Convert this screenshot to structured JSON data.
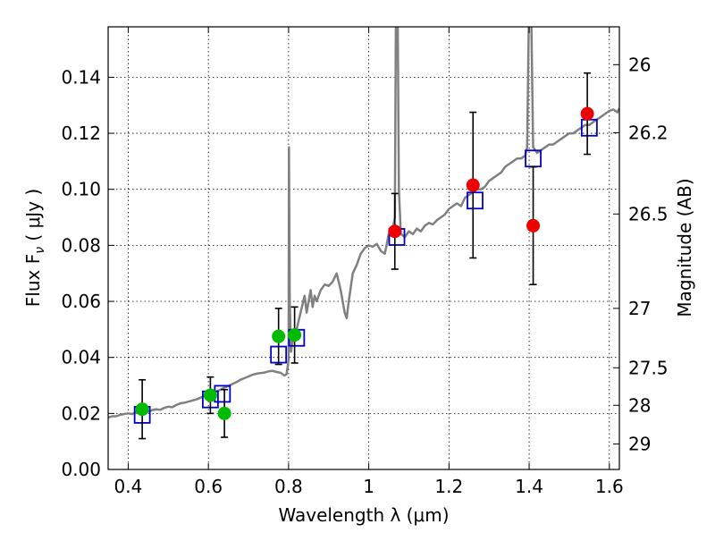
{
  "chart_data": {
    "type": "scatter",
    "xlabel": "Wavelength  λ (μm)",
    "ylabel": "Flux  F",
    "ylabel_sub": "ν",
    "ylabel_unit": "  ( μJy )",
    "y2label": "Magnitude (AB)",
    "xlim": [
      0.35,
      1.625
    ],
    "ylim": [
      0.0,
      0.158
    ],
    "grid": true,
    "x_ticks": [
      0.4,
      0.6,
      0.8,
      1.0,
      1.2,
      1.4,
      1.6
    ],
    "x_tick_labels": [
      "0.4",
      "0.6",
      "0.8",
      "1",
      "1.2",
      "1.4",
      "1.6"
    ],
    "y_ticks": [
      0.0,
      0.02,
      0.04,
      0.06,
      0.08,
      0.1,
      0.12,
      0.14
    ],
    "y_tick_labels": [
      "0.00",
      "0.02",
      "0.04",
      "0.06",
      "0.08",
      "0.10",
      "0.12",
      "0.14"
    ],
    "y2_ticks": [
      {
        "label": "26",
        "flux": 0.1445
      },
      {
        "label": "26.2",
        "flux": 0.1202
      },
      {
        "label": "26.5",
        "flux": 0.0912
      },
      {
        "label": "27",
        "flux": 0.0575
      },
      {
        "label": "27.5",
        "flux": 0.0363
      },
      {
        "label": "28",
        "flux": 0.0229
      },
      {
        "label": "29",
        "flux": 0.0091
      }
    ],
    "series": [
      {
        "kind": "line",
        "color": "#808080",
        "points": [
          [
            0.35,
            0.0185
          ],
          [
            0.36,
            0.019
          ],
          [
            0.37,
            0.019
          ],
          [
            0.38,
            0.0195
          ],
          [
            0.39,
            0.0198
          ],
          [
            0.4,
            0.02
          ],
          [
            0.41,
            0.0198
          ],
          [
            0.42,
            0.0205
          ],
          [
            0.43,
            0.021
          ],
          [
            0.44,
            0.0208
          ],
          [
            0.45,
            0.0206
          ],
          [
            0.46,
            0.0212
          ],
          [
            0.47,
            0.0215
          ],
          [
            0.48,
            0.0213
          ],
          [
            0.49,
            0.022
          ],
          [
            0.5,
            0.0224
          ],
          [
            0.51,
            0.0222
          ],
          [
            0.52,
            0.023
          ],
          [
            0.53,
            0.0236
          ],
          [
            0.54,
            0.0238
          ],
          [
            0.55,
            0.0242
          ],
          [
            0.56,
            0.0246
          ],
          [
            0.57,
            0.025
          ],
          [
            0.58,
            0.0256
          ],
          [
            0.59,
            0.0262
          ],
          [
            0.6,
            0.0268
          ],
          [
            0.61,
            0.027
          ],
          [
            0.62,
            0.0278
          ],
          [
            0.63,
            0.0285
          ],
          [
            0.64,
            0.0292
          ],
          [
            0.65,
            0.0298
          ],
          [
            0.66,
            0.0305
          ],
          [
            0.67,
            0.0312
          ],
          [
            0.68,
            0.032
          ],
          [
            0.69,
            0.0326
          ],
          [
            0.7,
            0.0332
          ],
          [
            0.71,
            0.0338
          ],
          [
            0.72,
            0.0342
          ],
          [
            0.73,
            0.0344
          ],
          [
            0.74,
            0.0346
          ],
          [
            0.75,
            0.035
          ],
          [
            0.76,
            0.0352
          ],
          [
            0.77,
            0.0348
          ],
          [
            0.78,
            0.0345
          ],
          [
            0.79,
            0.0335
          ],
          [
            0.795,
            0.034
          ],
          [
            0.8,
            0.039
          ],
          [
            0.801,
            0.115
          ],
          [
            0.803,
            0.06
          ],
          [
            0.806,
            0.042
          ],
          [
            0.81,
            0.046
          ],
          [
            0.82,
            0.05
          ],
          [
            0.83,
            0.056
          ],
          [
            0.84,
            0.062
          ],
          [
            0.845,
            0.056
          ],
          [
            0.85,
            0.06
          ],
          [
            0.855,
            0.064
          ],
          [
            0.86,
            0.058
          ],
          [
            0.865,
            0.062
          ],
          [
            0.87,
            0.06
          ],
          [
            0.88,
            0.064
          ],
          [
            0.89,
            0.066
          ],
          [
            0.9,
            0.0655
          ],
          [
            0.91,
            0.067
          ],
          [
            0.92,
            0.07
          ],
          [
            0.93,
            0.064
          ],
          [
            0.935,
            0.06
          ],
          [
            0.94,
            0.056
          ],
          [
            0.945,
            0.054
          ],
          [
            0.95,
            0.06
          ],
          [
            0.96,
            0.07
          ],
          [
            0.97,
            0.073
          ],
          [
            0.98,
            0.077
          ],
          [
            0.99,
            0.079
          ],
          [
            1.0,
            0.08
          ],
          [
            1.01,
            0.0795
          ],
          [
            1.02,
            0.0805
          ],
          [
            1.03,
            0.078
          ],
          [
            1.04,
            0.077
          ],
          [
            1.05,
            0.084
          ],
          [
            1.06,
            0.086
          ],
          [
            1.065,
            0.09
          ],
          [
            1.068,
            0.17
          ],
          [
            1.07,
            0.175
          ],
          [
            1.072,
            0.165
          ],
          [
            1.075,
            0.1
          ],
          [
            1.08,
            0.084
          ],
          [
            1.09,
            0.083
          ],
          [
            1.1,
            0.085
          ],
          [
            1.11,
            0.084
          ],
          [
            1.12,
            0.086
          ],
          [
            1.13,
            0.085
          ],
          [
            1.14,
            0.087
          ],
          [
            1.15,
            0.088
          ],
          [
            1.16,
            0.0875
          ],
          [
            1.17,
            0.089
          ],
          [
            1.18,
            0.09
          ],
          [
            1.19,
            0.091
          ],
          [
            1.2,
            0.093
          ],
          [
            1.21,
            0.094
          ],
          [
            1.22,
            0.095
          ],
          [
            1.23,
            0.094
          ],
          [
            1.24,
            0.097
          ],
          [
            1.25,
            0.098
          ],
          [
            1.26,
            0.099
          ],
          [
            1.27,
            0.1
          ],
          [
            1.28,
            0.1
          ],
          [
            1.29,
            0.101
          ],
          [
            1.3,
            0.103
          ],
          [
            1.31,
            0.104
          ],
          [
            1.32,
            0.105
          ],
          [
            1.33,
            0.106
          ],
          [
            1.34,
            0.108
          ],
          [
            1.35,
            0.109
          ],
          [
            1.36,
            0.11
          ],
          [
            1.37,
            0.111
          ],
          [
            1.38,
            0.111
          ],
          [
            1.39,
            0.112
          ],
          [
            1.395,
            0.115
          ],
          [
            1.4,
            0.17
          ],
          [
            1.405,
            0.165
          ],
          [
            1.41,
            0.115
          ],
          [
            1.42,
            0.113
          ],
          [
            1.43,
            0.114
          ],
          [
            1.44,
            0.115
          ],
          [
            1.45,
            0.116
          ],
          [
            1.46,
            0.116
          ],
          [
            1.47,
            0.117
          ],
          [
            1.48,
            0.118
          ],
          [
            1.49,
            0.119
          ],
          [
            1.5,
            0.12
          ],
          [
            1.51,
            0.12
          ],
          [
            1.52,
            0.121
          ],
          [
            1.53,
            0.122
          ],
          [
            1.54,
            0.123
          ],
          [
            1.55,
            0.123
          ],
          [
            1.56,
            0.124
          ],
          [
            1.57,
            0.125
          ],
          [
            1.58,
            0.126
          ],
          [
            1.59,
            0.127
          ],
          [
            1.6,
            0.128
          ],
          [
            1.61,
            0.1285
          ],
          [
            1.62,
            0.1275
          ],
          [
            1.625,
            0.129
          ]
        ]
      },
      {
        "kind": "squares",
        "color": "#0000cc",
        "points": [
          [
            0.435,
            0.0195
          ],
          [
            0.605,
            0.025
          ],
          [
            0.635,
            0.027
          ],
          [
            0.775,
            0.041
          ],
          [
            0.82,
            0.047
          ],
          [
            1.07,
            0.083
          ],
          [
            1.265,
            0.096
          ],
          [
            1.41,
            0.111
          ],
          [
            1.55,
            0.122
          ]
        ]
      },
      {
        "kind": "points",
        "color": "#00bb00",
        "points": [
          [
            0.435,
            0.0215
          ],
          [
            0.605,
            0.0265
          ],
          [
            0.64,
            0.02
          ],
          [
            0.775,
            0.0475
          ],
          [
            0.815,
            0.048
          ]
        ],
        "yerr": [
          0.0105,
          0.0065,
          0.0085,
          0.01,
          0.01
        ]
      },
      {
        "kind": "points",
        "color": "#ee0000",
        "points": [
          [
            1.065,
            0.085
          ],
          [
            1.26,
            0.1015
          ],
          [
            1.41,
            0.087
          ],
          [
            1.545,
            0.127
          ]
        ],
        "yerr": [
          0.0135,
          0.026,
          0.021,
          0.0145
        ]
      }
    ]
  }
}
